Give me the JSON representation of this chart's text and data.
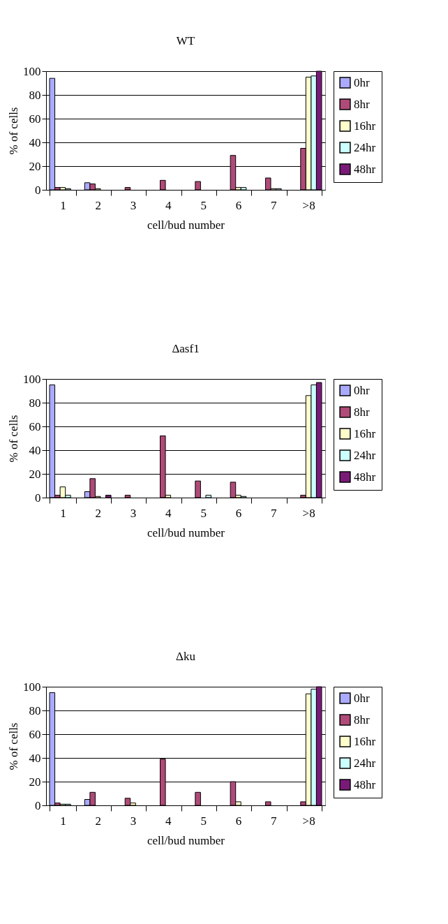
{
  "chart_data": [
    {
      "type": "bar",
      "title": "WT",
      "xlabel": "cell/bud number",
      "ylabel": "% of cells",
      "categories": [
        "1",
        "2",
        "3",
        "4",
        "5",
        "6",
        "7",
        ">8"
      ],
      "ylim": [
        0,
        100
      ],
      "yticks": [
        0,
        20,
        40,
        60,
        80,
        100
      ],
      "grid": "y",
      "legend": "top right",
      "series": [
        {
          "name": "0hr",
          "color": "#aaaaff",
          "values": [
            94,
            6,
            null,
            null,
            null,
            null,
            null,
            null
          ]
        },
        {
          "name": "8hr",
          "color": "#b04a78",
          "values": [
            2,
            5,
            2,
            8,
            7,
            29,
            10,
            35
          ]
        },
        {
          "name": "16hr",
          "color": "#ffffcc",
          "values": [
            2,
            1,
            null,
            null,
            null,
            2,
            1,
            95
          ]
        },
        {
          "name": "24hr",
          "color": "#ccffff",
          "values": [
            1,
            null,
            null,
            null,
            null,
            2,
            1,
            96
          ]
        },
        {
          "name": "48hr",
          "color": "#7a1a78",
          "values": [
            null,
            null,
            null,
            null,
            null,
            null,
            null,
            100
          ]
        }
      ]
    },
    {
      "type": "bar",
      "title": "Δasf1",
      "xlabel": "cell/bud number",
      "ylabel": "% of cells",
      "categories": [
        "1",
        "2",
        "3",
        "4",
        "5",
        "6",
        "7",
        ">8"
      ],
      "ylim": [
        0,
        100
      ],
      "yticks": [
        0,
        20,
        40,
        60,
        80,
        100
      ],
      "grid": "y",
      "legend": "top right",
      "series": [
        {
          "name": "0hr",
          "color": "#aaaaff",
          "values": [
            95,
            5,
            null,
            null,
            null,
            null,
            null,
            null
          ]
        },
        {
          "name": "8hr",
          "color": "#b04a78",
          "values": [
            2,
            16,
            2,
            52,
            14,
            13,
            null,
            2
          ]
        },
        {
          "name": "16hr",
          "color": "#ffffcc",
          "values": [
            9,
            1,
            null,
            2,
            null,
            2,
            null,
            86
          ]
        },
        {
          "name": "24hr",
          "color": "#ccffff",
          "values": [
            2,
            null,
            null,
            null,
            2,
            1,
            null,
            95
          ]
        },
        {
          "name": "48hr",
          "color": "#7a1a78",
          "values": [
            null,
            2,
            null,
            null,
            null,
            null,
            null,
            97
          ]
        }
      ]
    },
    {
      "type": "bar",
      "title": "Δku",
      "xlabel": "cell/bud number",
      "ylabel": "% of cells",
      "categories": [
        "1",
        "2",
        "3",
        "4",
        "5",
        "6",
        "7",
        ">8"
      ],
      "ylim": [
        0,
        100
      ],
      "yticks": [
        0,
        20,
        40,
        60,
        80,
        100
      ],
      "grid": "y",
      "legend": "top right",
      "series": [
        {
          "name": "0hr",
          "color": "#aaaaff",
          "values": [
            95,
            5,
            null,
            null,
            null,
            null,
            null,
            null
          ]
        },
        {
          "name": "8hr",
          "color": "#b04a78",
          "values": [
            2,
            11,
            6,
            39,
            11,
            20,
            3,
            3
          ]
        },
        {
          "name": "16hr",
          "color": "#ffffcc",
          "values": [
            1,
            null,
            2,
            null,
            null,
            3,
            null,
            94
          ]
        },
        {
          "name": "24hr",
          "color": "#ccffff",
          "values": [
            1,
            null,
            null,
            null,
            null,
            null,
            null,
            98
          ]
        },
        {
          "name": "48hr",
          "color": "#7a1a78",
          "values": [
            null,
            null,
            null,
            null,
            null,
            null,
            null,
            100
          ]
        }
      ]
    }
  ]
}
